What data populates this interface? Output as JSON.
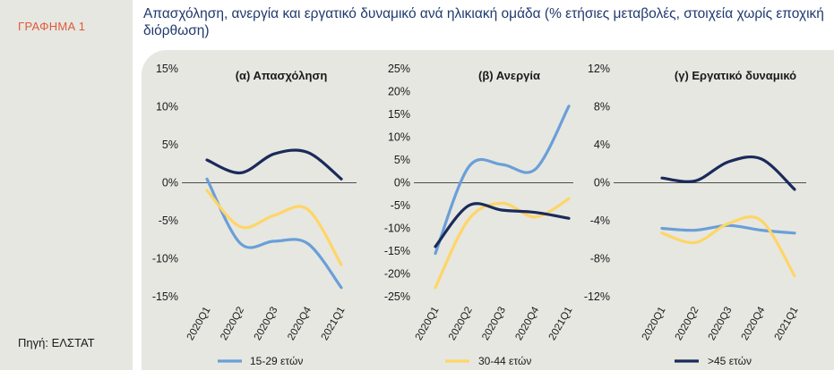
{
  "figure_label": "ΓΡΑΦΗΜΑ 1",
  "title": "Απασχόληση, ανεργία και εργατικό δυναμικό ανά ηλικιακή ομάδα (% ετήσιες μεταβολές, στοιχεία χωρίς εποχική διόρθωση)",
  "source": "Πηγή: ΕΛΣΤΑΤ",
  "colors": {
    "youth": "#6a9fd8",
    "mid": "#ffd566",
    "senior": "#1a2a5a",
    "title": "#1f3a6d",
    "label": "#e05a3c"
  },
  "chart_data": [
    {
      "type": "line",
      "title": "(α) Απασχόληση",
      "categories": [
        "2020Q1",
        "2020Q2",
        "2020Q3",
        "2020Q4",
        "2021Q1"
      ],
      "yticks": [
        "15%",
        "10%",
        "5%",
        "0%",
        "-5%",
        "-10%",
        "-15%"
      ],
      "ylim": [
        -15,
        15
      ],
      "series": [
        {
          "name": "15-29 ετών",
          "values": [
            0.5,
            -8.0,
            -7.7,
            -8.0,
            -13.8
          ]
        },
        {
          "name": "30-44 ετών",
          "values": [
            -1.0,
            -5.8,
            -4.3,
            -3.5,
            -10.8
          ]
        },
        {
          "name": ">45 ετών",
          "values": [
            3.0,
            1.3,
            3.8,
            4.0,
            0.5
          ]
        }
      ]
    },
    {
      "type": "line",
      "title": "(β) Ανεργία",
      "categories": [
        "2020Q1",
        "2020Q2",
        "2020Q3",
        "2020Q4",
        "2021Q1"
      ],
      "yticks": [
        "25%",
        "20%",
        "15%",
        "10%",
        "5%",
        "0%",
        "-5%",
        "-10%",
        "-15%",
        "-20%",
        "-25%"
      ],
      "ylim": [
        -25,
        25
      ],
      "series": [
        {
          "name": "15-29 ετών",
          "values": [
            -15.5,
            3.5,
            4.0,
            3.0,
            16.8
          ]
        },
        {
          "name": "30-44 ετών",
          "values": [
            -23.0,
            -8.0,
            -4.5,
            -7.5,
            -3.5
          ]
        },
        {
          "name": ">45 ετών",
          "values": [
            -14.0,
            -5.0,
            -6.0,
            -6.5,
            -7.8
          ]
        }
      ]
    },
    {
      "type": "line",
      "title": "(γ) Εργατικό δυναμικό",
      "categories": [
        "2020Q1",
        "2020Q2",
        "2020Q3",
        "2020Q4",
        "2021Q1"
      ],
      "yticks": [
        "12%",
        "8%",
        "4%",
        "0%",
        "-4%",
        "-8%",
        "-12%"
      ],
      "ylim": [
        -12,
        12
      ],
      "series": [
        {
          "name": "15-29 ετών",
          "values": [
            -4.8,
            -5.0,
            -4.5,
            -5.0,
            -5.3
          ]
        },
        {
          "name": "30-44 ετών",
          "values": [
            -5.3,
            -6.3,
            -4.3,
            -4.0,
            -9.8
          ]
        },
        {
          "name": ">45 ετών",
          "values": [
            0.5,
            0.2,
            2.2,
            2.5,
            -0.7
          ]
        }
      ]
    }
  ],
  "legend": [
    "15-29 ετών",
    "30-44 ετών",
    ">45 ετών"
  ]
}
